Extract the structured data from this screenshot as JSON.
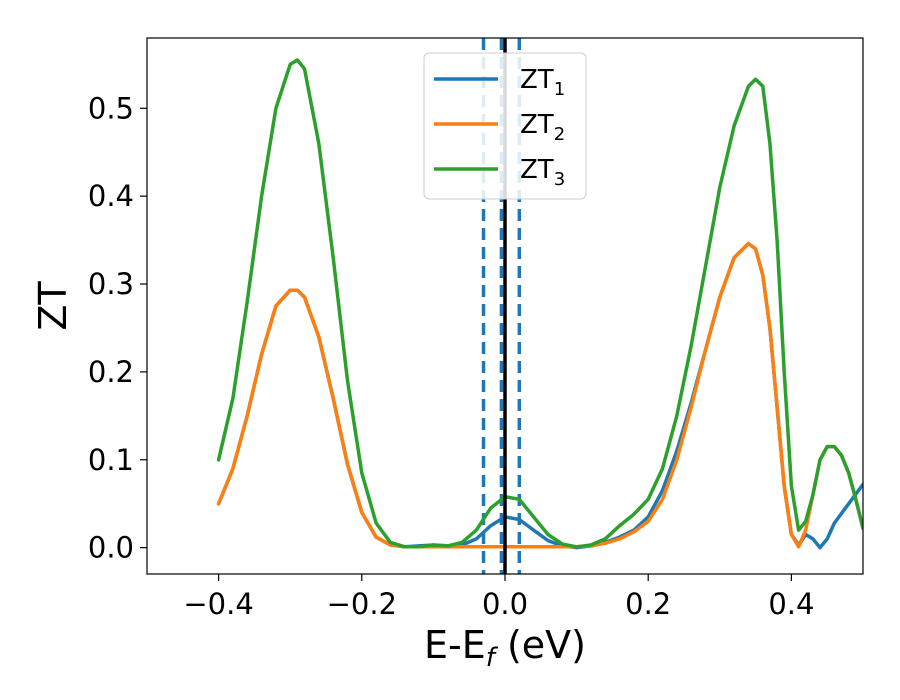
{
  "chart_data": {
    "type": "line",
    "xlabel": "E-E",
    "xlabel_sub": "f",
    "xlabel_unit": " (eV)",
    "ylabel": "ZT",
    "xlim": [
      -0.5,
      0.5
    ],
    "ylim": [
      -0.03,
      0.58
    ],
    "xticks": [
      -0.4,
      -0.2,
      0.0,
      0.2,
      0.4
    ],
    "xtick_labels": [
      "−0.4",
      "−0.2",
      "0.0",
      "0.2",
      "0.4"
    ],
    "yticks": [
      0.0,
      0.1,
      0.2,
      0.3,
      0.4,
      0.5
    ],
    "ytick_labels": [
      "0.0",
      "0.1",
      "0.2",
      "0.3",
      "0.4",
      "0.5"
    ],
    "legend_position": "top-center",
    "vlines": [
      {
        "x": -0.03,
        "style": "dashed",
        "color": "#1f77b4"
      },
      {
        "x": -0.005,
        "style": "dashed",
        "color": "#1f77b4"
      },
      {
        "x": 0.02,
        "style": "dashed",
        "color": "#1f77b4"
      },
      {
        "x": 0.0,
        "style": "solid",
        "color": "#000000"
      }
    ],
    "series": [
      {
        "name": "ZT",
        "sub": "1",
        "color": "#1f77b4",
        "points": [
          [
            -0.4,
            0.05
          ],
          [
            -0.38,
            0.09
          ],
          [
            -0.36,
            0.15
          ],
          [
            -0.34,
            0.22
          ],
          [
            -0.32,
            0.275
          ],
          [
            -0.3,
            0.293
          ],
          [
            -0.29,
            0.293
          ],
          [
            -0.28,
            0.285
          ],
          [
            -0.26,
            0.24
          ],
          [
            -0.24,
            0.17
          ],
          [
            -0.22,
            0.095
          ],
          [
            -0.2,
            0.04
          ],
          [
            -0.18,
            0.012
          ],
          [
            -0.16,
            0.003
          ],
          [
            -0.14,
            0.001
          ],
          [
            -0.12,
            0.002
          ],
          [
            -0.1,
            0.003
          ],
          [
            -0.08,
            0.002
          ],
          [
            -0.06,
            0.003
          ],
          [
            -0.04,
            0.01
          ],
          [
            -0.02,
            0.025
          ],
          [
            0.0,
            0.035
          ],
          [
            0.02,
            0.032
          ],
          [
            0.04,
            0.02
          ],
          [
            0.06,
            0.008
          ],
          [
            0.08,
            0.002
          ],
          [
            0.1,
            0.0
          ],
          [
            0.12,
            0.002
          ],
          [
            0.14,
            0.006
          ],
          [
            0.16,
            0.012
          ],
          [
            0.18,
            0.02
          ],
          [
            0.2,
            0.035
          ],
          [
            0.22,
            0.065
          ],
          [
            0.24,
            0.11
          ],
          [
            0.26,
            0.165
          ],
          [
            0.28,
            0.225
          ],
          [
            0.3,
            0.285
          ],
          [
            0.32,
            0.33
          ],
          [
            0.34,
            0.346
          ],
          [
            0.35,
            0.34
          ],
          [
            0.36,
            0.31
          ],
          [
            0.37,
            0.25
          ],
          [
            0.38,
            0.16
          ],
          [
            0.39,
            0.07
          ],
          [
            0.4,
            0.015
          ],
          [
            0.41,
            0.003
          ],
          [
            0.42,
            0.015
          ],
          [
            0.43,
            0.01
          ],
          [
            0.44,
            0.0
          ],
          [
            0.45,
            0.01
          ],
          [
            0.46,
            0.028
          ],
          [
            0.48,
            0.05
          ],
          [
            0.5,
            0.072
          ]
        ]
      },
      {
        "name": "ZT",
        "sub": "2",
        "color": "#ff7f0e",
        "points": [
          [
            -0.4,
            0.05
          ],
          [
            -0.38,
            0.09
          ],
          [
            -0.36,
            0.15
          ],
          [
            -0.34,
            0.22
          ],
          [
            -0.32,
            0.275
          ],
          [
            -0.3,
            0.293
          ],
          [
            -0.29,
            0.293
          ],
          [
            -0.28,
            0.285
          ],
          [
            -0.26,
            0.24
          ],
          [
            -0.24,
            0.17
          ],
          [
            -0.22,
            0.095
          ],
          [
            -0.2,
            0.04
          ],
          [
            -0.18,
            0.012
          ],
          [
            -0.16,
            0.003
          ],
          [
            -0.14,
            0.001
          ],
          [
            -0.12,
            0.001
          ],
          [
            -0.1,
            0.001
          ],
          [
            -0.08,
            0.001
          ],
          [
            -0.06,
            0.001
          ],
          [
            -0.04,
            0.001
          ],
          [
            -0.02,
            0.001
          ],
          [
            0.0,
            0.001
          ],
          [
            0.02,
            0.001
          ],
          [
            0.04,
            0.001
          ],
          [
            0.06,
            0.001
          ],
          [
            0.08,
            0.001
          ],
          [
            0.1,
            0.001
          ],
          [
            0.12,
            0.002
          ],
          [
            0.14,
            0.005
          ],
          [
            0.16,
            0.01
          ],
          [
            0.18,
            0.018
          ],
          [
            0.2,
            0.03
          ],
          [
            0.22,
            0.055
          ],
          [
            0.24,
            0.1
          ],
          [
            0.26,
            0.16
          ],
          [
            0.28,
            0.225
          ],
          [
            0.3,
            0.285
          ],
          [
            0.32,
            0.33
          ],
          [
            0.34,
            0.346
          ],
          [
            0.35,
            0.34
          ],
          [
            0.36,
            0.31
          ],
          [
            0.37,
            0.25
          ],
          [
            0.38,
            0.16
          ],
          [
            0.39,
            0.07
          ],
          [
            0.4,
            0.015
          ],
          [
            0.41,
            0.001
          ],
          [
            0.42,
            0.02
          ],
          [
            0.43,
            0.06
          ],
          [
            0.44,
            0.1
          ],
          [
            0.45,
            0.115
          ],
          [
            0.46,
            0.115
          ],
          [
            0.47,
            0.105
          ],
          [
            0.48,
            0.085
          ],
          [
            0.49,
            0.055
          ],
          [
            0.5,
            0.022
          ]
        ]
      },
      {
        "name": "ZT",
        "sub": "3",
        "color": "#2ca02c",
        "points": [
          [
            -0.4,
            0.1
          ],
          [
            -0.38,
            0.17
          ],
          [
            -0.36,
            0.28
          ],
          [
            -0.34,
            0.4
          ],
          [
            -0.32,
            0.5
          ],
          [
            -0.3,
            0.55
          ],
          [
            -0.29,
            0.555
          ],
          [
            -0.28,
            0.545
          ],
          [
            -0.26,
            0.46
          ],
          [
            -0.24,
            0.33
          ],
          [
            -0.22,
            0.19
          ],
          [
            -0.2,
            0.085
          ],
          [
            -0.18,
            0.028
          ],
          [
            -0.16,
            0.006
          ],
          [
            -0.14,
            0.001
          ],
          [
            -0.12,
            0.001
          ],
          [
            -0.1,
            0.003
          ],
          [
            -0.08,
            0.002
          ],
          [
            -0.06,
            0.006
          ],
          [
            -0.04,
            0.02
          ],
          [
            -0.02,
            0.045
          ],
          [
            0.0,
            0.058
          ],
          [
            0.02,
            0.055
          ],
          [
            0.04,
            0.035
          ],
          [
            0.06,
            0.015
          ],
          [
            0.08,
            0.004
          ],
          [
            0.1,
            0.001
          ],
          [
            0.12,
            0.003
          ],
          [
            0.14,
            0.01
          ],
          [
            0.16,
            0.025
          ],
          [
            0.18,
            0.038
          ],
          [
            0.2,
            0.055
          ],
          [
            0.22,
            0.09
          ],
          [
            0.24,
            0.15
          ],
          [
            0.26,
            0.23
          ],
          [
            0.28,
            0.32
          ],
          [
            0.3,
            0.41
          ],
          [
            0.32,
            0.48
          ],
          [
            0.34,
            0.525
          ],
          [
            0.35,
            0.533
          ],
          [
            0.36,
            0.525
          ],
          [
            0.37,
            0.46
          ],
          [
            0.38,
            0.35
          ],
          [
            0.39,
            0.2
          ],
          [
            0.4,
            0.07
          ],
          [
            0.41,
            0.02
          ],
          [
            0.42,
            0.03
          ],
          [
            0.43,
            0.06
          ],
          [
            0.44,
            0.1
          ],
          [
            0.45,
            0.115
          ],
          [
            0.46,
            0.115
          ],
          [
            0.47,
            0.105
          ],
          [
            0.48,
            0.085
          ],
          [
            0.49,
            0.055
          ],
          [
            0.5,
            0.022
          ]
        ]
      }
    ]
  }
}
